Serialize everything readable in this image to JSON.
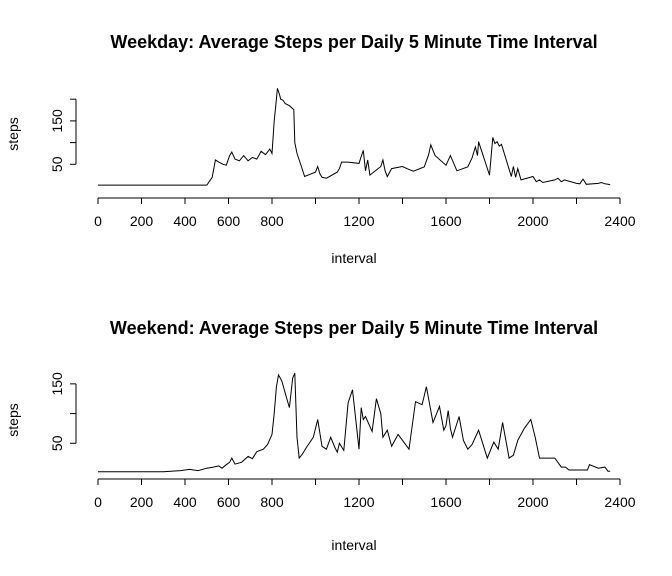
{
  "chart_data": [
    {
      "type": "line",
      "title": "Weekday: Average Steps per Daily 5 Minute Time Interval",
      "xlabel": "interval",
      "ylabel": "steps",
      "xlim": [
        0,
        2400
      ],
      "ylim": [
        0,
        235
      ],
      "x_ticks": [
        0,
        200,
        400,
        600,
        800,
        1200,
        1600,
        2000,
        2400
      ],
      "y_ticks": [
        50,
        150
      ],
      "grid": false,
      "series": [
        {
          "x": [
            0,
            400,
            500,
            525,
            540,
            555,
            575,
            590,
            605,
            615,
            630,
            650,
            670,
            690,
            710,
            730,
            750,
            770,
            790,
            800,
            810,
            820,
            825,
            835,
            840,
            850,
            860,
            880,
            900,
            905,
            915,
            925,
            935,
            950,
            1000,
            1010,
            1020,
            1030,
            1050,
            1100,
            1110,
            1120,
            1150,
            1200,
            1210,
            1220,
            1230,
            1240,
            1250,
            1300,
            1310,
            1320,
            1330,
            1350,
            1400,
            1420,
            1450,
            1500,
            1520,
            1530,
            1540,
            1550,
            1600,
            1620,
            1650,
            1700,
            1720,
            1735,
            1745,
            1750,
            1800,
            1815,
            1825,
            1835,
            1845,
            1855,
            1900,
            1910,
            1920,
            1930,
            1945,
            2000,
            2015,
            2030,
            2045,
            2100,
            2115,
            2130,
            2145,
            2200,
            2215,
            2230,
            2245,
            2300,
            2315,
            2330,
            2345,
            2355
          ],
          "y": [
            2,
            2,
            2,
            20,
            60,
            55,
            50,
            48,
            70,
            78,
            62,
            58,
            70,
            58,
            66,
            62,
            80,
            72,
            85,
            75,
            150,
            200,
            225,
            210,
            200,
            198,
            190,
            185,
            176,
            100,
            75,
            60,
            45,
            22,
            32,
            45,
            28,
            20,
            18,
            32,
            40,
            55,
            55,
            52,
            68,
            82,
            35,
            60,
            25,
            45,
            60,
            35,
            22,
            40,
            45,
            40,
            34,
            44,
            72,
            95,
            82,
            70,
            48,
            70,
            35,
            44,
            65,
            90,
            70,
            102,
            25,
            112,
            98,
            102,
            92,
            96,
            22,
            45,
            20,
            40,
            14,
            22,
            10,
            14,
            8,
            14,
            18,
            10,
            14,
            6,
            5,
            16,
            4,
            6,
            8,
            5,
            4,
            3
          ]
        }
      ]
    },
    {
      "type": "line",
      "title": "Weekend: Average Steps per Daily 5 Minute Time Interval",
      "xlabel": "interval",
      "ylabel": "steps",
      "xlim": [
        0,
        2400
      ],
      "ylim": [
        0,
        175
      ],
      "x_ticks": [
        0,
        200,
        400,
        600,
        800,
        1200,
        1600,
        2000,
        2400
      ],
      "y_ticks": [
        50,
        150
      ],
      "grid": false,
      "series": [
        {
          "x": [
            0,
            100,
            200,
            300,
            380,
            420,
            460,
            500,
            530,
            555,
            570,
            590,
            605,
            615,
            630,
            660,
            690,
            710,
            730,
            760,
            780,
            800,
            810,
            820,
            830,
            845,
            860,
            880,
            895,
            905,
            915,
            925,
            940,
            960,
            990,
            1010,
            1030,
            1050,
            1070,
            1090,
            1100,
            1110,
            1130,
            1150,
            1170,
            1200,
            1210,
            1220,
            1230,
            1260,
            1280,
            1300,
            1310,
            1330,
            1350,
            1380,
            1400,
            1430,
            1460,
            1490,
            1510,
            1540,
            1570,
            1590,
            1600,
            1610,
            1620,
            1630,
            1660,
            1680,
            1700,
            1720,
            1750,
            1790,
            1820,
            1840,
            1860,
            1890,
            1910,
            1930,
            1960,
            1990,
            2010,
            2030,
            2060,
            2100,
            2130,
            2150,
            2165,
            2180,
            2200,
            2250,
            2260,
            2300,
            2330,
            2345,
            2355
          ],
          "y": [
            2,
            2,
            2,
            2,
            4,
            6,
            4,
            8,
            10,
            12,
            8,
            14,
            18,
            25,
            15,
            18,
            28,
            24,
            36,
            40,
            48,
            65,
            100,
            145,
            165,
            155,
            135,
            110,
            160,
            168,
            60,
            25,
            32,
            44,
            60,
            90,
            45,
            40,
            60,
            42,
            35,
            50,
            38,
            118,
            140,
            40,
            110,
            90,
            95,
            70,
            125,
            100,
            60,
            72,
            45,
            65,
            55,
            40,
            120,
            115,
            145,
            85,
            112,
            72,
            80,
            105,
            75,
            60,
            95,
            55,
            40,
            48,
            72,
            25,
            52,
            40,
            85,
            25,
            30,
            55,
            75,
            90,
            60,
            25,
            25,
            25,
            10,
            10,
            5,
            5,
            5,
            5,
            14,
            8,
            10,
            3,
            3
          ]
        }
      ]
    }
  ]
}
